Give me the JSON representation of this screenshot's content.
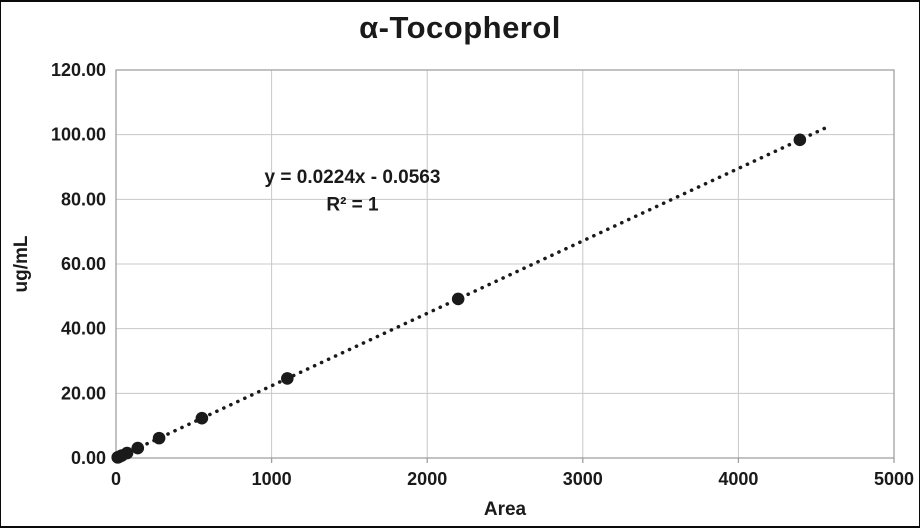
{
  "chart_data": {
    "type": "scatter",
    "title": "α-Tocopherol",
    "xlabel": "Area",
    "ylabel": "ug/mL",
    "xlim": [
      0,
      5000
    ],
    "ylim": [
      0,
      120
    ],
    "xticks": [
      0,
      1000,
      2000,
      3000,
      4000,
      5000
    ],
    "yticks": [
      0,
      20,
      40,
      60,
      80,
      100,
      120
    ],
    "xtick_labels": [
      "0",
      "1000",
      "2000",
      "3000",
      "4000",
      "5000"
    ],
    "ytick_labels": [
      "0.00",
      "20.00",
      "40.00",
      "60.00",
      "80.00",
      "100.00",
      "120.00"
    ],
    "grid": true,
    "legend": "none",
    "points": [
      {
        "x": 11,
        "y": 0.19
      },
      {
        "x": 20,
        "y": 0.38
      },
      {
        "x": 37,
        "y": 0.77
      },
      {
        "x": 71,
        "y": 1.54
      },
      {
        "x": 140,
        "y": 3.08
      },
      {
        "x": 277,
        "y": 6.15
      },
      {
        "x": 552,
        "y": 12.3
      },
      {
        "x": 1101,
        "y": 24.6
      },
      {
        "x": 2199,
        "y": 49.2
      },
      {
        "x": 4395,
        "y": 98.4
      }
    ],
    "trendline": {
      "slope": 0.0224,
      "intercept": -0.0563,
      "x_start": 20,
      "x_end": 4560,
      "style": "dotted"
    },
    "annotation": {
      "lines": [
        "y = 0.0224x - 0.0563",
        "R² = 1"
      ],
      "x": 1520,
      "y": [
        85,
        76.5
      ]
    },
    "colors": {
      "marker": "#1a1a1a",
      "trendline": "#1a1a1a",
      "grid": "#c8c8c8",
      "border": "#a0a0a0",
      "text": "#1a1a1a"
    }
  }
}
